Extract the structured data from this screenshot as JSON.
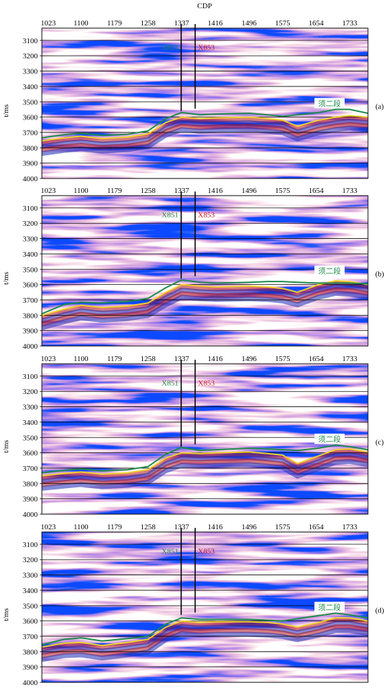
{
  "figure_title": "CDP",
  "chart_data": {
    "type": "seismic-section",
    "xlabel": "CDP",
    "ylabel": "t/ms",
    "x_ticks": [
      "1023",
      "1100",
      "1179",
      "1258",
      "1337",
      "1416",
      "1496",
      "1575",
      "1654",
      "1733"
    ],
    "x_tick_values": [
      1023,
      1100,
      1179,
      1258,
      1337,
      1416,
      1496,
      1575,
      1654,
      1733
    ],
    "xlim": [
      1008,
      1776
    ],
    "y_ticks": [
      "3100",
      "3200",
      "3300",
      "3400",
      "3500",
      "3600",
      "3700",
      "3800",
      "3900",
      "4000"
    ],
    "y_tick_values": [
      3100,
      3200,
      3300,
      3400,
      3500,
      3600,
      3700,
      3800,
      3900,
      4000
    ],
    "ylim": [
      3020,
      4000
    ],
    "grid": "horizontal",
    "colors": {
      "positive": "#c8141e",
      "negative": "#1e2ab4",
      "horizon_green": "#1a8a4a",
      "horizon_yellow": "#f0d22a",
      "well_line": "#000000",
      "well_label_1": "#1a8a4a",
      "well_label_2": "#c8141e"
    },
    "wells": [
      {
        "name": "X851",
        "cdp": 1336,
        "bottom_t": 3560
      },
      {
        "name": "X853",
        "cdp": 1369,
        "bottom_t": 3545
      }
    ],
    "horizon_name": "须二段",
    "panels": [
      {
        "label": "(a)",
        "green": {
          "x": [
            1008,
            1060,
            1100,
            1150,
            1210,
            1258,
            1300,
            1337,
            1380,
            1420,
            1496,
            1540,
            1575,
            1610,
            1660,
            1700,
            1733,
            1776
          ],
          "y": [
            3735,
            3715,
            3705,
            3720,
            3712,
            3690,
            3610,
            3570,
            3585,
            3580,
            3575,
            3585,
            3595,
            3585,
            3570,
            3550,
            3550,
            3575
          ]
        },
        "yellow": {
          "x": [
            1008,
            1060,
            1100,
            1150,
            1210,
            1258,
            1300,
            1337,
            1380,
            1420,
            1496,
            1540,
            1575,
            1610,
            1660,
            1700,
            1733,
            1776
          ],
          "y": [
            3755,
            3735,
            3725,
            3740,
            3730,
            3710,
            3635,
            3600,
            3610,
            3605,
            3600,
            3610,
            3620,
            3660,
            3620,
            3600,
            3590,
            3600
          ]
        }
      },
      {
        "label": "(b)",
        "green": {
          "x": [
            1008,
            1060,
            1100,
            1150,
            1210,
            1258,
            1300,
            1337,
            1380,
            1420,
            1496,
            1540,
            1575,
            1610,
            1660,
            1700,
            1733,
            1776
          ],
          "y": [
            3790,
            3730,
            3715,
            3720,
            3710,
            3690,
            3620,
            3570,
            3585,
            3590,
            3585,
            3580,
            3580,
            3585,
            3590,
            3590,
            3590,
            3595
          ]
        },
        "yellow": {
          "x": [
            1008,
            1060,
            1100,
            1150,
            1210,
            1258,
            1300,
            1337,
            1380,
            1420,
            1496,
            1540,
            1575,
            1610,
            1660,
            1700,
            1733,
            1776
          ],
          "y": [
            3800,
            3760,
            3735,
            3750,
            3740,
            3720,
            3650,
            3600,
            3610,
            3615,
            3610,
            3615,
            3625,
            3650,
            3600,
            3575,
            3580,
            3600
          ]
        }
      },
      {
        "label": "(c)",
        "green": {
          "x": [
            1008,
            1060,
            1100,
            1150,
            1210,
            1258,
            1300,
            1337,
            1380,
            1420,
            1496,
            1540,
            1575,
            1610,
            1660,
            1700,
            1733,
            1776
          ],
          "y": [
            3730,
            3715,
            3705,
            3718,
            3710,
            3690,
            3610,
            3565,
            3585,
            3580,
            3570,
            3575,
            3580,
            3585,
            3570,
            3550,
            3560,
            3580
          ]
        },
        "yellow": {
          "x": [
            1008,
            1060,
            1100,
            1150,
            1210,
            1258,
            1300,
            1337,
            1380,
            1420,
            1496,
            1540,
            1575,
            1610,
            1660,
            1700,
            1733,
            1776
          ],
          "y": [
            3750,
            3735,
            3725,
            3740,
            3730,
            3710,
            3635,
            3600,
            3605,
            3600,
            3595,
            3605,
            3615,
            3670,
            3620,
            3580,
            3575,
            3595
          ]
        }
      },
      {
        "label": "(d)",
        "green": {
          "x": [
            1008,
            1060,
            1100,
            1150,
            1210,
            1258,
            1300,
            1337,
            1380,
            1420,
            1496,
            1540,
            1575,
            1610,
            1660,
            1700,
            1733,
            1776
          ],
          "y": [
            3755,
            3720,
            3710,
            3730,
            3715,
            3700,
            3620,
            3580,
            3590,
            3590,
            3590,
            3595,
            3600,
            3585,
            3565,
            3550,
            3560,
            3580
          ]
        },
        "yellow": {
          "x": [
            1008,
            1060,
            1100,
            1150,
            1210,
            1258,
            1300,
            1337,
            1380,
            1420,
            1496,
            1540,
            1575,
            1610,
            1660,
            1700,
            1733,
            1776
          ],
          "y": [
            3770,
            3745,
            3740,
            3760,
            3740,
            3720,
            3640,
            3600,
            3610,
            3605,
            3605,
            3610,
            3620,
            3640,
            3610,
            3580,
            3580,
            3600
          ]
        }
      }
    ]
  }
}
